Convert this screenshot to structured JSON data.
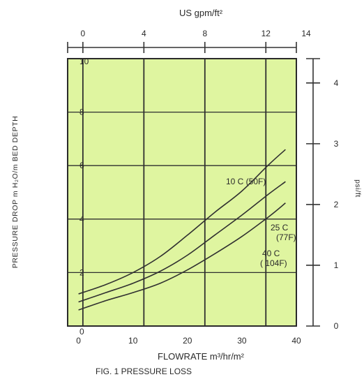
{
  "chart_data": {
    "type": "line",
    "title": "FIG. 1 PRESSURE LOSS",
    "xlabel": "FLOWRATE  m³/hr/m²",
    "ylabel": "PRESSURE DROP m H₂O/m BED DEPTH",
    "x2label": "US gpm/ft²",
    "y2label": "psi/ft",
    "xlim": [
      -2,
      40
    ],
    "ylim": [
      0,
      10
    ],
    "x2lim": [
      -1,
      14
    ],
    "y2lim": [
      0,
      4.4
    ],
    "x_ticks": [
      "0",
      "10",
      "20",
      "30",
      "40"
    ],
    "y_ticks": [
      "0",
      "2",
      "4",
      "6",
      "8",
      "10"
    ],
    "x2_ticks": [
      "0",
      "4",
      "8",
      "12",
      "14"
    ],
    "y2_ticks": [
      "0",
      "1",
      "2",
      "3",
      "4"
    ],
    "grid": true,
    "background": "#dff5a0",
    "line_color": "#303030",
    "series": [
      {
        "name": "10°C (50°F)",
        "label_lines": [
          "10 C  (50F)"
        ],
        "x": [
          0,
          5,
          10,
          15,
          20,
          25,
          30,
          35,
          38
        ],
        "y": [
          1.2,
          1.55,
          2.0,
          2.6,
          3.4,
          4.25,
          5.05,
          6.05,
          6.6
        ]
      },
      {
        "name": "25°C (77°F)",
        "label_lines": [
          "25 C",
          "(77F)"
        ],
        "x": [
          0,
          5,
          10,
          15,
          20,
          25,
          30,
          35,
          38
        ],
        "y": [
          0.9,
          1.25,
          1.6,
          2.05,
          2.65,
          3.4,
          4.15,
          4.95,
          5.4
        ]
      },
      {
        "name": "40°C (104°F)",
        "label_lines": [
          "40 C",
          "( 104F)"
        ],
        "x": [
          0,
          5,
          10,
          15,
          20,
          25,
          30,
          35,
          38
        ],
        "y": [
          0.6,
          0.95,
          1.25,
          1.6,
          2.1,
          2.7,
          3.35,
          4.1,
          4.6
        ]
      }
    ]
  }
}
